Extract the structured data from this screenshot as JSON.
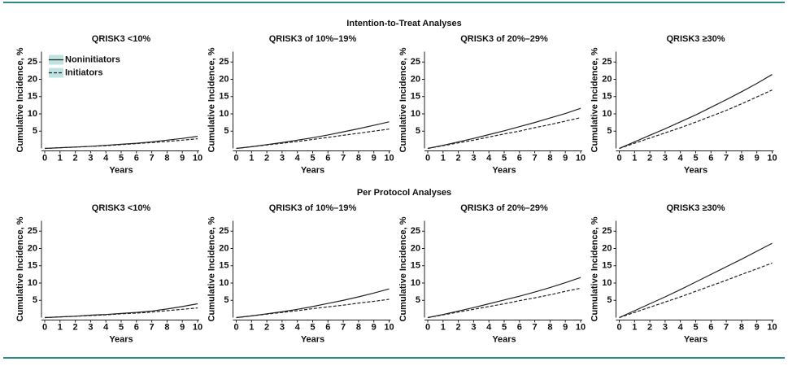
{
  "sections": [
    "Intention-to-Treat Analyses",
    "Per Protocol Analyses"
  ],
  "chart_data": [
    {
      "type": "line",
      "title": "QRISK3 <10%",
      "xlabel": "Years",
      "ylabel": "Cumulative Incidence, %",
      "x": [
        0,
        1,
        2,
        3,
        4,
        5,
        6,
        7,
        8,
        9,
        10
      ],
      "xlim": [
        0,
        10
      ],
      "xticks": [
        0,
        1,
        2,
        3,
        4,
        5,
        6,
        7,
        8,
        9,
        10
      ],
      "ylim": [
        0,
        28
      ],
      "yticks": [
        5,
        10,
        15,
        20,
        25
      ],
      "legend": "upper left",
      "series": [
        {
          "name": "Noninitiators",
          "color": "#222222",
          "dash": false,
          "values": [
            0,
            0.2,
            0.4,
            0.6,
            0.9,
            1.2,
            1.5,
            1.9,
            2.4,
            2.9,
            3.5
          ]
        },
        {
          "name": "Initiators",
          "color": "#222222",
          "dash": true,
          "values": [
            0,
            0.2,
            0.4,
            0.6,
            0.8,
            1.1,
            1.4,
            1.7,
            2.0,
            2.4,
            2.8
          ]
        }
      ]
    },
    {
      "type": "line",
      "title": "QRISK3 of 10%–19%",
      "xlabel": "Years",
      "ylabel": "Cumulative Incidence, %",
      "x": [
        0,
        1,
        2,
        3,
        4,
        5,
        6,
        7,
        8,
        9,
        10
      ],
      "xlim": [
        0,
        10
      ],
      "xticks": [
        0,
        1,
        2,
        3,
        4,
        5,
        6,
        7,
        8,
        9,
        10
      ],
      "ylim": [
        0,
        28
      ],
      "yticks": [
        5,
        10,
        15,
        20,
        25
      ],
      "series": [
        {
          "color": "#222222",
          "dash": false,
          "values": [
            0,
            0.5,
            1.1,
            1.7,
            2.4,
            3.1,
            3.9,
            4.8,
            5.7,
            6.7,
            7.7
          ]
        },
        {
          "color": "#222222",
          "dash": true,
          "values": [
            0,
            0.5,
            1.0,
            1.5,
            2.0,
            2.6,
            3.2,
            3.8,
            4.4,
            5.0,
            5.6
          ]
        }
      ]
    },
    {
      "type": "line",
      "title": "QRISK3 of 20%–29%",
      "xlabel": "Years",
      "ylabel": "Cumulative Incidence, %",
      "x": [
        0,
        1,
        2,
        3,
        4,
        5,
        6,
        7,
        8,
        9,
        10
      ],
      "xlim": [
        0,
        10
      ],
      "xticks": [
        0,
        1,
        2,
        3,
        4,
        5,
        6,
        7,
        8,
        9,
        10
      ],
      "ylim": [
        0,
        28
      ],
      "yticks": [
        5,
        10,
        15,
        20,
        25
      ],
      "series": [
        {
          "color": "#222222",
          "dash": false,
          "values": [
            0,
            0.9,
            1.9,
            2.9,
            4.0,
            5.1,
            6.3,
            7.5,
            8.8,
            10.1,
            11.6
          ]
        },
        {
          "color": "#222222",
          "dash": true,
          "values": [
            0,
            0.8,
            1.6,
            2.4,
            3.3,
            4.2,
            5.0,
            6.0,
            6.9,
            7.9,
            8.9
          ]
        }
      ]
    },
    {
      "type": "line",
      "title": "QRISK3 ≥30%",
      "xlabel": "Years",
      "ylabel": "Cumulative Incidence, %",
      "x": [
        0,
        1,
        2,
        3,
        4,
        5,
        6,
        7,
        8,
        9,
        10
      ],
      "xlim": [
        0,
        10
      ],
      "xticks": [
        0,
        1,
        2,
        3,
        4,
        5,
        6,
        7,
        8,
        9,
        10
      ],
      "ylim": [
        0,
        28
      ],
      "yticks": [
        5,
        10,
        15,
        20,
        25
      ],
      "series": [
        {
          "color": "#222222",
          "dash": false,
          "values": [
            0,
            1.9,
            3.8,
            5.7,
            7.7,
            9.7,
            11.9,
            14.1,
            16.4,
            18.8,
            21.4
          ]
        },
        {
          "color": "#222222",
          "dash": true,
          "values": [
            0,
            1.5,
            3.0,
            4.5,
            6.0,
            7.6,
            9.3,
            11.0,
            12.9,
            14.9,
            16.9
          ]
        }
      ]
    },
    {
      "type": "line",
      "title": "QRISK3 <10%",
      "xlabel": "Years",
      "ylabel": "Cumulative Incidence, %",
      "x": [
        0,
        1,
        2,
        3,
        4,
        5,
        6,
        7,
        8,
        9,
        10
      ],
      "xlim": [
        0,
        10
      ],
      "xticks": [
        0,
        1,
        2,
        3,
        4,
        5,
        6,
        7,
        8,
        9,
        10
      ],
      "ylim": [
        0,
        28
      ],
      "yticks": [
        5,
        10,
        15,
        20,
        25
      ],
      "series": [
        {
          "color": "#222222",
          "dash": false,
          "values": [
            0,
            0.2,
            0.4,
            0.7,
            0.9,
            1.2,
            1.5,
            1.9,
            2.5,
            3.2,
            4.0
          ]
        },
        {
          "color": "#222222",
          "dash": true,
          "values": [
            0,
            0.2,
            0.4,
            0.6,
            0.8,
            1.1,
            1.3,
            1.6,
            2.0,
            2.4,
            2.8
          ]
        }
      ]
    },
    {
      "type": "line",
      "title": "QRISK3 of 10%–19%",
      "xlabel": "Years",
      "ylabel": "Cumulative Incidence, %",
      "x": [
        0,
        1,
        2,
        3,
        4,
        5,
        6,
        7,
        8,
        9,
        10
      ],
      "xlim": [
        0,
        10
      ],
      "xticks": [
        0,
        1,
        2,
        3,
        4,
        5,
        6,
        7,
        8,
        9,
        10
      ],
      "ylim": [
        0,
        28
      ],
      "yticks": [
        5,
        10,
        15,
        20,
        25
      ],
      "series": [
        {
          "color": "#222222",
          "dash": false,
          "values": [
            0,
            0.5,
            1.1,
            1.7,
            2.4,
            3.2,
            4.1,
            5.0,
            6.0,
            7.1,
            8.3
          ]
        },
        {
          "color": "#222222",
          "dash": true,
          "values": [
            0,
            0.5,
            1.0,
            1.5,
            2.0,
            2.6,
            3.1,
            3.6,
            4.2,
            4.7,
            5.3
          ]
        }
      ]
    },
    {
      "type": "line",
      "title": "QRISK3 of 20%–29%",
      "xlabel": "Years",
      "ylabel": "Cumulative Incidence, %",
      "x": [
        0,
        1,
        2,
        3,
        4,
        5,
        6,
        7,
        8,
        9,
        10
      ],
      "xlim": [
        0,
        10
      ],
      "xticks": [
        0,
        1,
        2,
        3,
        4,
        5,
        6,
        7,
        8,
        9,
        10
      ],
      "ylim": [
        0,
        28
      ],
      "yticks": [
        5,
        10,
        15,
        20,
        25
      ],
      "series": [
        {
          "color": "#222222",
          "dash": false,
          "values": [
            0,
            0.9,
            1.9,
            2.9,
            4.0,
            5.1,
            6.2,
            7.4,
            8.7,
            10.1,
            11.6
          ]
        },
        {
          "color": "#222222",
          "dash": true,
          "values": [
            0,
            0.8,
            1.6,
            2.4,
            3.2,
            4.0,
            4.9,
            5.7,
            6.6,
            7.6,
            8.5
          ]
        }
      ]
    },
    {
      "type": "line",
      "title": "QRISK3 ≥30%",
      "xlabel": "Years",
      "ylabel": "Cumulative Incidence, %",
      "x": [
        0,
        1,
        2,
        3,
        4,
        5,
        6,
        7,
        8,
        9,
        10
      ],
      "xlim": [
        0,
        10
      ],
      "xticks": [
        0,
        1,
        2,
        3,
        4,
        5,
        6,
        7,
        8,
        9,
        10
      ],
      "ylim": [
        0,
        28
      ],
      "yticks": [
        5,
        10,
        15,
        20,
        25
      ],
      "series": [
        {
          "color": "#222222",
          "dash": false,
          "values": [
            0,
            2.0,
            4.0,
            6.0,
            8.1,
            10.3,
            12.5,
            14.7,
            16.9,
            19.2,
            21.5
          ]
        },
        {
          "color": "#222222",
          "dash": true,
          "values": [
            0,
            1.5,
            3.0,
            4.5,
            6.0,
            7.6,
            9.2,
            10.8,
            12.5,
            14.1,
            15.8
          ]
        }
      ]
    }
  ]
}
